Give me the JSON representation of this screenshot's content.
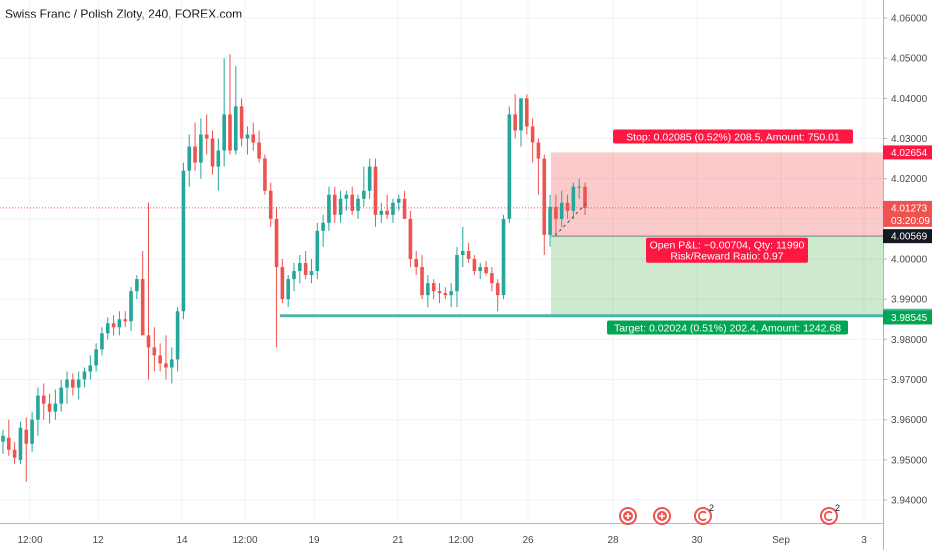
{
  "chart_data": {
    "type": "candlestick",
    "title": "Swiss Franc / Polish Zloty, 240, FOREX.com",
    "xlabel": "",
    "ylabel": "",
    "ylim": [
      3.935,
      4.065
    ],
    "grid": true,
    "x_ticks": [
      "12:00",
      "12",
      "14",
      "12:00",
      "19",
      "21",
      "12:00",
      "26",
      "28",
      "30",
      "Sep",
      "3"
    ],
    "y_ticks": [
      "4.06000",
      "4.05000",
      "4.04000",
      "4.03000",
      "4.02000",
      "4.01000",
      "4.00000",
      "3.99000",
      "3.98000",
      "3.97000",
      "3.96000",
      "3.95000",
      "3.94000"
    ],
    "candles": [
      {
        "o": 3.9545,
        "h": 3.9575,
        "l": 3.9515,
        "c": 3.956
      },
      {
        "o": 3.9555,
        "h": 3.96,
        "l": 3.951,
        "c": 3.9525
      },
      {
        "o": 3.9525,
        "h": 3.9545,
        "l": 3.949,
        "c": 3.9505
      },
      {
        "o": 3.95,
        "h": 3.9595,
        "l": 3.949,
        "c": 3.958
      },
      {
        "o": 3.9575,
        "h": 3.9605,
        "l": 3.9445,
        "c": 3.954
      },
      {
        "o": 3.954,
        "h": 3.962,
        "l": 3.952,
        "c": 3.96
      },
      {
        "o": 3.96,
        "h": 3.968,
        "l": 3.956,
        "c": 3.966
      },
      {
        "o": 3.966,
        "h": 3.969,
        "l": 3.96,
        "c": 3.964
      },
      {
        "o": 3.964,
        "h": 3.9665,
        "l": 3.959,
        "c": 3.962
      },
      {
        "o": 3.962,
        "h": 3.9675,
        "l": 3.96,
        "c": 3.964
      },
      {
        "o": 3.964,
        "h": 3.97,
        "l": 3.962,
        "c": 3.968
      },
      {
        "o": 3.968,
        "h": 3.972,
        "l": 3.964,
        "c": 3.97
      },
      {
        "o": 3.97,
        "h": 3.9715,
        "l": 3.966,
        "c": 3.968
      },
      {
        "o": 3.968,
        "h": 3.972,
        "l": 3.965,
        "c": 3.97
      },
      {
        "o": 3.97,
        "h": 3.973,
        "l": 3.968,
        "c": 3.972
      },
      {
        "o": 3.972,
        "h": 3.976,
        "l": 3.97,
        "c": 3.9735
      },
      {
        "o": 3.9735,
        "h": 3.979,
        "l": 3.972,
        "c": 3.9775
      },
      {
        "o": 3.9775,
        "h": 3.983,
        "l": 3.976,
        "c": 3.9815
      },
      {
        "o": 3.9815,
        "h": 3.9855,
        "l": 3.98,
        "c": 3.984
      },
      {
        "o": 3.984,
        "h": 3.986,
        "l": 3.981,
        "c": 3.983
      },
      {
        "o": 3.983,
        "h": 3.987,
        "l": 3.981,
        "c": 3.985
      },
      {
        "o": 3.985,
        "h": 3.987,
        "l": 3.983,
        "c": 3.9845
      },
      {
        "o": 3.9845,
        "h": 3.993,
        "l": 3.982,
        "c": 3.992
      },
      {
        "o": 3.992,
        "h": 3.996,
        "l": 3.99,
        "c": 3.995
      },
      {
        "o": 3.995,
        "h": 4.002,
        "l": 3.982,
        "c": 3.981
      },
      {
        "o": 3.981,
        "h": 4.014,
        "l": 3.97,
        "c": 3.978
      },
      {
        "o": 3.978,
        "h": 3.983,
        "l": 3.972,
        "c": 3.976
      },
      {
        "o": 3.976,
        "h": 3.979,
        "l": 3.972,
        "c": 3.974
      },
      {
        "o": 3.974,
        "h": 3.981,
        "l": 3.97,
        "c": 3.973
      },
      {
        "o": 3.973,
        "h": 3.978,
        "l": 3.969,
        "c": 3.975
      },
      {
        "o": 3.975,
        "h": 3.988,
        "l": 3.972,
        "c": 3.987
      },
      {
        "o": 3.987,
        "h": 4.024,
        "l": 3.985,
        "c": 4.022
      },
      {
        "o": 4.022,
        "h": 4.031,
        "l": 4.018,
        "c": 4.028
      },
      {
        "o": 4.028,
        "h": 4.034,
        "l": 4.022,
        "c": 4.024
      },
      {
        "o": 4.024,
        "h": 4.035,
        "l": 4.02,
        "c": 4.031
      },
      {
        "o": 4.031,
        "h": 4.036,
        "l": 4.026,
        "c": 4.03
      },
      {
        "o": 4.03,
        "h": 4.032,
        "l": 4.021,
        "c": 4.023
      },
      {
        "o": 4.023,
        "h": 4.03,
        "l": 4.017,
        "c": 4.027
      },
      {
        "o": 4.027,
        "h": 4.05,
        "l": 4.023,
        "c": 4.036
      },
      {
        "o": 4.036,
        "h": 4.051,
        "l": 4.026,
        "c": 4.027
      },
      {
        "o": 4.027,
        "h": 4.048,
        "l": 4.026,
        "c": 4.038
      },
      {
        "o": 4.038,
        "h": 4.04,
        "l": 4.028,
        "c": 4.03
      },
      {
        "o": 4.03,
        "h": 4.033,
        "l": 4.026,
        "c": 4.031
      },
      {
        "o": 4.031,
        "h": 4.034,
        "l": 4.027,
        "c": 4.029
      },
      {
        "o": 4.029,
        "h": 4.032,
        "l": 4.024,
        "c": 4.025
      },
      {
        "o": 4.025,
        "h": 4.026,
        "l": 4.016,
        "c": 4.017
      },
      {
        "o": 4.017,
        "h": 4.019,
        "l": 4.008,
        "c": 4.01
      },
      {
        "o": 4.01,
        "h": 4.013,
        "l": 3.978,
        "c": 3.998
      },
      {
        "o": 3.998,
        "h": 4.0,
        "l": 3.989,
        "c": 3.99
      },
      {
        "o": 3.99,
        "h": 3.996,
        "l": 3.988,
        "c": 3.995
      },
      {
        "o": 3.995,
        "h": 3.999,
        "l": 3.992,
        "c": 3.997
      },
      {
        "o": 3.997,
        "h": 4.001,
        "l": 3.994,
        "c": 3.999
      },
      {
        "o": 3.999,
        "h": 4.002,
        "l": 3.995,
        "c": 3.996
      },
      {
        "o": 3.996,
        "h": 4.0,
        "l": 3.994,
        "c": 3.997
      },
      {
        "o": 3.997,
        "h": 4.009,
        "l": 3.995,
        "c": 4.007
      },
      {
        "o": 4.007,
        "h": 4.011,
        "l": 4.003,
        "c": 4.009
      },
      {
        "o": 4.009,
        "h": 4.018,
        "l": 4.007,
        "c": 4.016
      },
      {
        "o": 4.016,
        "h": 4.018,
        "l": 4.009,
        "c": 4.011
      },
      {
        "o": 4.011,
        "h": 4.017,
        "l": 4.009,
        "c": 4.015
      },
      {
        "o": 4.015,
        "h": 4.017,
        "l": 4.012,
        "c": 4.016
      },
      {
        "o": 4.016,
        "h": 4.018,
        "l": 4.011,
        "c": 4.012
      },
      {
        "o": 4.012,
        "h": 4.016,
        "l": 4.01,
        "c": 4.015
      },
      {
        "o": 4.015,
        "h": 4.023,
        "l": 4.013,
        "c": 4.017
      },
      {
        "o": 4.017,
        "h": 4.025,
        "l": 4.015,
        "c": 4.023
      },
      {
        "o": 4.023,
        "h": 4.025,
        "l": 4.008,
        "c": 4.011
      },
      {
        "o": 4.011,
        "h": 4.014,
        "l": 4.009,
        "c": 4.012
      },
      {
        "o": 4.012,
        "h": 4.016,
        "l": 4.01,
        "c": 4.011
      },
      {
        "o": 4.011,
        "h": 4.015,
        "l": 4.009,
        "c": 4.014
      },
      {
        "o": 4.014,
        "h": 4.016,
        "l": 4.012,
        "c": 4.015
      },
      {
        "o": 4.015,
        "h": 4.017,
        "l": 4.01,
        "c": 4.01
      },
      {
        "o": 4.01,
        "h": 4.012,
        "l": 3.998,
        "c": 4.0
      },
      {
        "o": 4.0,
        "h": 4.002,
        "l": 3.996,
        "c": 3.998
      },
      {
        "o": 3.998,
        "h": 4.001,
        "l": 3.99,
        "c": 3.991
      },
      {
        "o": 3.991,
        "h": 3.996,
        "l": 3.988,
        "c": 3.994
      },
      {
        "o": 3.994,
        "h": 3.995,
        "l": 3.99,
        "c": 3.992
      },
      {
        "o": 3.992,
        "h": 3.994,
        "l": 3.989,
        "c": 3.9915
      },
      {
        "o": 3.9915,
        "h": 3.993,
        "l": 3.99,
        "c": 3.991
      },
      {
        "o": 3.991,
        "h": 3.994,
        "l": 3.988,
        "c": 3.992
      },
      {
        "o": 3.992,
        "h": 4.003,
        "l": 3.988,
        "c": 4.001
      },
      {
        "o": 4.001,
        "h": 4.008,
        "l": 3.998,
        "c": 4.002
      },
      {
        "o": 4.002,
        "h": 4.004,
        "l": 3.999,
        "c": 4.0
      },
      {
        "o": 4.0,
        "h": 4.001,
        "l": 3.996,
        "c": 3.997
      },
      {
        "o": 3.997,
        "h": 3.999,
        "l": 3.995,
        "c": 3.998
      },
      {
        "o": 3.998,
        "h": 3.9995,
        "l": 3.996,
        "c": 3.9965
      },
      {
        "o": 3.9965,
        "h": 3.998,
        "l": 3.992,
        "c": 3.994
      },
      {
        "o": 3.994,
        "h": 3.995,
        "l": 3.987,
        "c": 3.991
      },
      {
        "o": 3.991,
        "h": 4.011,
        "l": 3.99,
        "c": 4.01
      },
      {
        "o": 4.01,
        "h": 4.038,
        "l": 4.009,
        "c": 4.036
      },
      {
        "o": 4.036,
        "h": 4.041,
        "l": 4.03,
        "c": 4.032
      },
      {
        "o": 4.032,
        "h": 4.04,
        "l": 4.028,
        "c": 4.04
      },
      {
        "o": 4.04,
        "h": 4.041,
        "l": 4.031,
        "c": 4.033
      },
      {
        "o": 4.033,
        "h": 4.035,
        "l": 4.024,
        "c": 4.029
      },
      {
        "o": 4.029,
        "h": 4.03,
        "l": 4.016,
        "c": 4.025
      },
      {
        "o": 4.025,
        "h": 4.026,
        "l": 4.001,
        "c": 4.006
      },
      {
        "o": 4.006,
        "h": 4.016,
        "l": 4.003,
        "c": 4.013
      },
      {
        "o": 4.013,
        "h": 4.016,
        "l": 4.006,
        "c": 4.01
      },
      {
        "o": 4.01,
        "h": 4.017,
        "l": 4.008,
        "c": 4.014
      },
      {
        "o": 4.014,
        "h": 4.016,
        "l": 4.01,
        "c": 4.012
      },
      {
        "o": 4.012,
        "h": 4.019,
        "l": 4.01,
        "c": 4.018
      },
      {
        "o": 4.018,
        "h": 4.02,
        "l": 4.015,
        "c": 4.018
      },
      {
        "o": 4.018,
        "h": 4.019,
        "l": 4.011,
        "c": 4.0127
      }
    ],
    "current_price": {
      "value": "4.01273",
      "countdown": "03:20:09",
      "color": "#ef5350"
    },
    "support_line": {
      "value": 3.98587,
      "label": "3.98587",
      "color": "#4db6ac"
    },
    "position": {
      "entry": 4.00569,
      "entry_label": "4.00569",
      "stop": 4.02654,
      "stop_label": "4.02654",
      "target": 3.98545,
      "target_label": "3.98545",
      "stop_text": "Stop: 0.02085 (0.52%) 208.5, Amount: 750.01",
      "target_text": "Target: 0.02024 (0.51%) 202.4, Amount: 1242.68",
      "pnl_line1": "Open P&L: −0.00704, Qty: 11990",
      "pnl_line2": "Risk/Reward Ratio: 0.97"
    },
    "events": [
      {
        "icon": "plus-event-icon",
        "badge": ""
      },
      {
        "icon": "plus-event-icon",
        "badge": ""
      },
      {
        "icon": "earnings-event-icon",
        "badge": "2"
      },
      {
        "icon": "earnings-event-icon",
        "badge": "2"
      }
    ]
  },
  "colors": {
    "up": "#26a69a",
    "down": "#ef5350",
    "grid": "#f0f3fa",
    "axis_text": "#4a4a4a"
  }
}
